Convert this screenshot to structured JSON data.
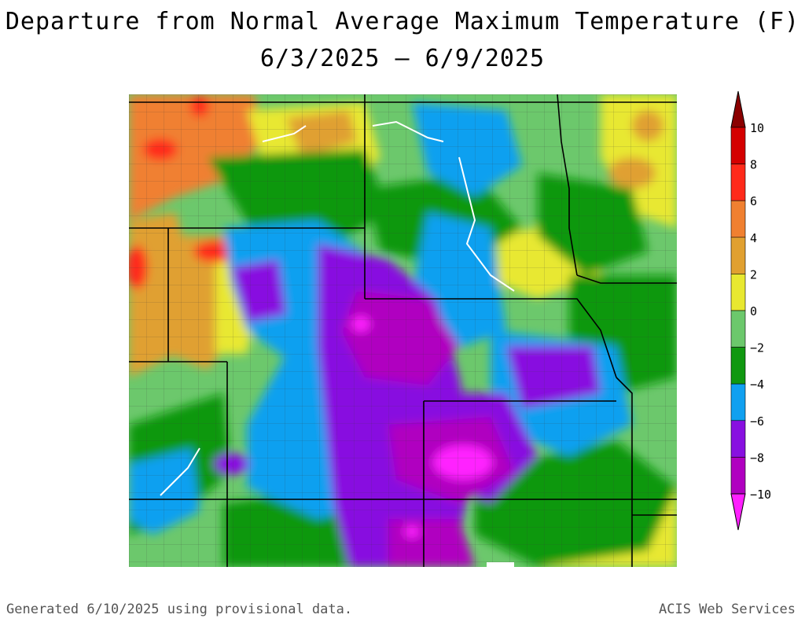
{
  "title_line1": "Departure from Normal Average Maximum Temperature (F)",
  "title_line2": "6/3/2025 – 6/9/2025",
  "footer_left": "Generated 6/10/2025 using provisional data.",
  "footer_right": "ACIS Web Services",
  "legend": {
    "labels": [
      "10",
      "8",
      "6",
      "4",
      "2",
      "0",
      "−2",
      "−4",
      "−6",
      "−8",
      "−10"
    ],
    "colors": [
      "#8b0000",
      "#d40000",
      "#ff2a1a",
      "#f08030",
      "#e0a030",
      "#e8e830",
      "#6cc86c",
      "#109810",
      "#10a0f0",
      "#8810e0",
      "#b000c0",
      "#ff20ff"
    ]
  }
}
